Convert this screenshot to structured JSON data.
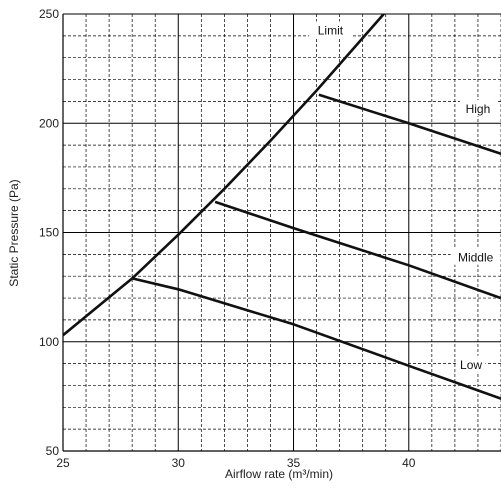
{
  "chart_data": {
    "type": "line",
    "title": "",
    "xlabel": "Airflow rate (m³/min)",
    "ylabel": "Static Pressure (Pa)",
    "xlim": [
      25,
      44
    ],
    "ylim": [
      50,
      250
    ],
    "x_ticks": [
      "25",
      "30",
      "35",
      "40"
    ],
    "y_ticks": [
      "50",
      "100",
      "150",
      "200",
      "250"
    ],
    "grid": "major solid, minor dashed",
    "series": [
      {
        "name": "Limit",
        "x": [
          25,
          28,
          30,
          32,
          34,
          36,
          38,
          39
        ],
        "y": [
          103,
          129,
          149,
          170,
          192,
          215,
          239,
          251
        ]
      },
      {
        "name": "High",
        "x": [
          36.1,
          40,
          44
        ],
        "y": [
          213,
          200,
          186
        ]
      },
      {
        "name": "Middle",
        "x": [
          31.6,
          35,
          40,
          44
        ],
        "y": [
          164,
          152,
          135,
          120
        ]
      },
      {
        "name": "Low",
        "x": [
          28.0,
          30,
          35,
          40,
          44
        ],
        "y": [
          129,
          124,
          108,
          89,
          74
        ]
      }
    ]
  },
  "colors": {
    "line": "#111111",
    "grid": "#000000"
  }
}
